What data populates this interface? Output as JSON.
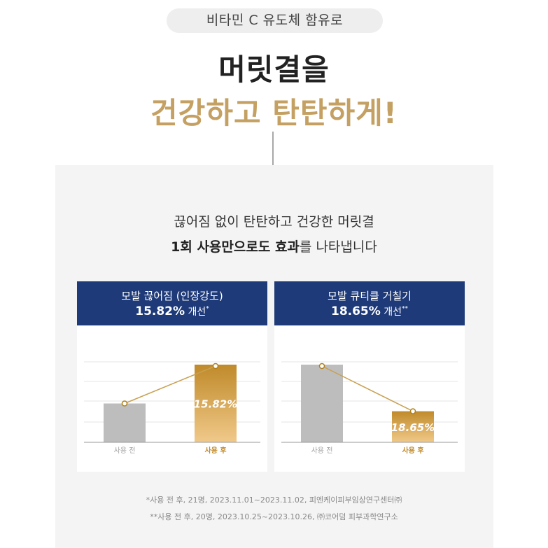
{
  "pill_text": "비타민 C 유도체 함유로",
  "headline_line1": "머릿결을",
  "headline_line2": "건강하고 탄탄하게!",
  "intro_line1": "끊어짐 없이 탄탄하고 건강한 머릿결",
  "intro_line2_bold": "1회 사용만으로도 효과",
  "intro_line2_rest": "를 나타냅니다",
  "colors": {
    "navy": "#1e3a78",
    "gold": "#c4a062",
    "bar_before": "#bdbdbd",
    "bar_after_top": "#c08a2a",
    "bar_after_bottom": "#f0c98a",
    "line": "#c8a050"
  },
  "chart_data": [
    {
      "type": "bar",
      "title": "모발 끊어짐 (인장강도)",
      "headline_value": "15.82%",
      "headline_suffix": " 개선",
      "headline_mark": "*",
      "categories": [
        "사용 전",
        "사용 후"
      ],
      "values": [
        50,
        100
      ],
      "bar_label": "15.82%",
      "label_index": 1,
      "grid": true
    },
    {
      "type": "bar",
      "title": "모발 큐티클 거칠기",
      "headline_value": "18.65%",
      "headline_suffix": " 개선",
      "headline_mark": "**",
      "categories": [
        "사용 전",
        "사용 후"
      ],
      "values": [
        100,
        40
      ],
      "bar_label": "18.65%",
      "label_index": 1,
      "grid": true
    }
  ],
  "footnote1": "*사용 전 후, 21명, 2023.11.01~2023.11.02, 피엔케이피부임상연구센터㈜",
  "footnote2": "**사용 전 후, 20명, 2023.10.25~2023.10.26, ㈜코어덤 피부과학연구소"
}
